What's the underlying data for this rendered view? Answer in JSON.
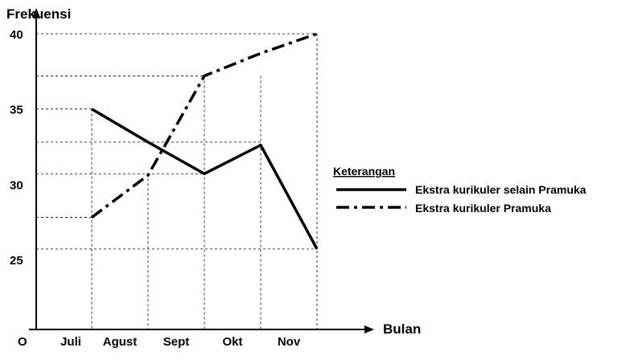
{
  "chart_data": {
    "type": "line",
    "ylabel": "Frekuensi",
    "xlabel": "Bulan",
    "origin_label": "O",
    "categories": [
      "Juli",
      "Agust",
      "Sept",
      "Okt",
      "Nov"
    ],
    "yticks": [
      25,
      30,
      35,
      40
    ],
    "ylim": [
      20.3,
      42
    ],
    "series": [
      {
        "name": "Ekstra kurikuler selain Pramuka",
        "style": "solid",
        "values": [
          35,
          32.8,
          30.7,
          32.6,
          25.7
        ]
      },
      {
        "name": "Ekstra kurikuler Pramuka",
        "style": "dash-dot",
        "values": [
          27.8,
          30.6,
          37.2,
          38.7,
          40
        ]
      }
    ],
    "reference_lines": [
      25.7,
      27.8,
      30.7,
      32.8,
      35,
      37.2,
      40
    ],
    "legend": {
      "title": "Keterangan",
      "placement": "right"
    },
    "grid": "dashed guide lines"
  }
}
